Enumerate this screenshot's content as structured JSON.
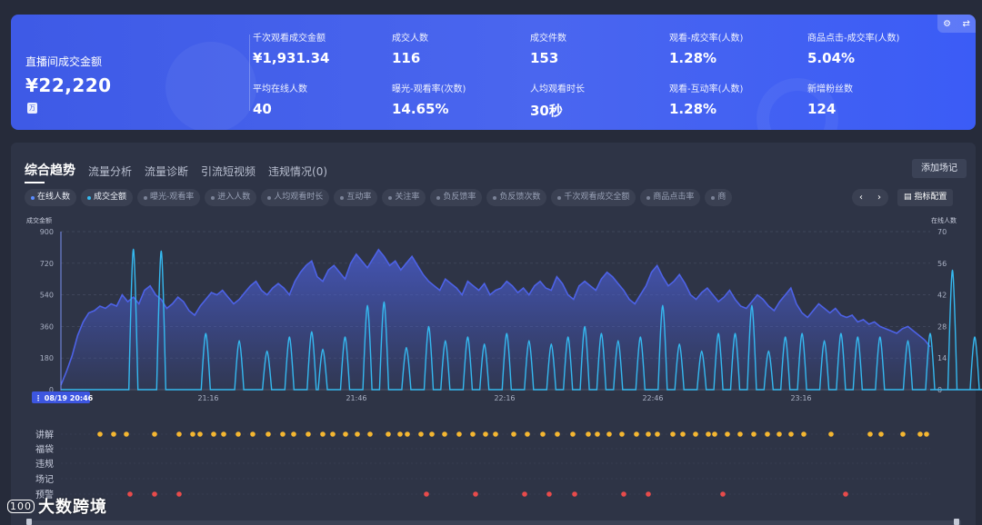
{
  "kpis": {
    "main": {
      "label": "直播间成交金额",
      "value": "¥22,220",
      "unit": "万"
    },
    "items": [
      {
        "label": "千次观看成交金额",
        "value": "¥1,931.34"
      },
      {
        "label": "成交人数",
        "value": "116"
      },
      {
        "label": "成交件数",
        "value": "153"
      },
      {
        "label": "观看-成交率(人数)",
        "value": "1.28%"
      },
      {
        "label": "商品点击-成交率(人数)",
        "value": "5.04%"
      },
      {
        "label": "平均在线人数",
        "value": "40"
      },
      {
        "label": "曝光-观看率(次数)",
        "value": "14.65%"
      },
      {
        "label": "人均观看时长",
        "value": "30秒"
      },
      {
        "label": "观看-互动率(人数)",
        "value": "1.28%"
      },
      {
        "label": "新增粉丝数",
        "value": "124"
      }
    ],
    "tool_icons": [
      "gear-icon",
      "swap-icon"
    ]
  },
  "tabs": [
    "综合趋势",
    "流量分析",
    "流量诊断",
    "引流短视频",
    "违规情况(0)"
  ],
  "add_button": "添加场记",
  "metrics": [
    "在线人数",
    "成交全额",
    "曝光-观看率",
    "进入人数",
    "人均观看时长",
    "互动率",
    "关注率",
    "负反馈率",
    "负反馈次数",
    "千次观看成交全额",
    "商品点击率",
    "商"
  ],
  "metrics_on": [
    0,
    1
  ],
  "pager": {
    "prev": "‹",
    "next": "›"
  },
  "config_button": "指标配置",
  "colors": {
    "accent": "#4a66ef",
    "online": "#4d62e6",
    "sales": "#35b9f0",
    "event_yellow": "#f5b731",
    "event_red": "#e84b4b"
  },
  "chart_data": {
    "type": "line",
    "left_axis": {
      "label": "成交金额",
      "ticks": [
        0,
        180,
        360,
        540,
        720,
        900
      ],
      "ylim": [
        0,
        900
      ]
    },
    "right_axis": {
      "label": "在线人数",
      "ticks": [
        0,
        14,
        28,
        42,
        56,
        70
      ],
      "ylim": [
        0,
        70
      ]
    },
    "x_ticks": [
      "21:16",
      "21:46",
      "22:16",
      "22:46",
      "23:16"
    ],
    "cursor_label": "08/19 20:46",
    "series": [
      {
        "name": "在线人数",
        "axis": "right",
        "area": true,
        "values": [
          2,
          8,
          15,
          24,
          30,
          34,
          35,
          37,
          36,
          38,
          37,
          42,
          39,
          41,
          38,
          44,
          46,
          42,
          40,
          36,
          38,
          41,
          39,
          35,
          33,
          37,
          40,
          43,
          42,
          44,
          41,
          38,
          40,
          43,
          46,
          48,
          44,
          42,
          45,
          47,
          45,
          42,
          48,
          52,
          55,
          57,
          50,
          48,
          53,
          55,
          52,
          49,
          56,
          60,
          57,
          54,
          58,
          62,
          59,
          55,
          57,
          53,
          56,
          59,
          55,
          51,
          48,
          46,
          44,
          49,
          47,
          45,
          42,
          48,
          46,
          44,
          47,
          42,
          44,
          45,
          48,
          46,
          43,
          45,
          42,
          46,
          48,
          45,
          44,
          50,
          47,
          42,
          40,
          46,
          48,
          46,
          44,
          49,
          52,
          50,
          47,
          44,
          40,
          38,
          42,
          46,
          52,
          55,
          50,
          46,
          48,
          51,
          47,
          42,
          40,
          43,
          45,
          42,
          39,
          41,
          44,
          40,
          37,
          36,
          39,
          42,
          40,
          37,
          35,
          39,
          42,
          45,
          38,
          34,
          32,
          35,
          38,
          36,
          34,
          36,
          33,
          32,
          33,
          30,
          31,
          29,
          30,
          28,
          27,
          26,
          25,
          27,
          28,
          26,
          24,
          22,
          19
        ]
      },
      {
        "name": "成交全额",
        "axis": "left",
        "area": false,
        "values": [
          0,
          0,
          0,
          0,
          0,
          0,
          0,
          0,
          0,
          0,
          0,
          0,
          0,
          0,
          160,
          0,
          0,
          0,
          0,
          0,
          0,
          0,
          0,
          0,
          0,
          0,
          0,
          0,
          0,
          0,
          0,
          0,
          0,
          0,
          0,
          0,
          0,
          0,
          0,
          0,
          0,
          0,
          0,
          0,
          0,
          0,
          0,
          0,
          0,
          0,
          0,
          0,
          0,
          0,
          0,
          0,
          0,
          0,
          0,
          0,
          0,
          0,
          0,
          0,
          0,
          0,
          0,
          0,
          0,
          0,
          0,
          0,
          0,
          0,
          0,
          0,
          0,
          0,
          0,
          0,
          0,
          0,
          0,
          0,
          0,
          0,
          0,
          0,
          0,
          0,
          0,
          0,
          0,
          0,
          0,
          0,
          0,
          0,
          0,
          0,
          0,
          0,
          0,
          0,
          0,
          0,
          0,
          0,
          0,
          0,
          0,
          0,
          0,
          0,
          0,
          0,
          0,
          0,
          0,
          0,
          0,
          0,
          0,
          0,
          0,
          0,
          0,
          0,
          0,
          0,
          0,
          0,
          0,
          0,
          0,
          0,
          0,
          0,
          0,
          0,
          0,
          0,
          0,
          0,
          0,
          0,
          0,
          0,
          0,
          0,
          0,
          0,
          0,
          0,
          0,
          0
        ]
      },
      {
        "name": "成交全额-峰值",
        "axis": "left",
        "area": false,
        "peaks": [
          [
            13,
            800
          ],
          [
            18,
            790
          ],
          [
            26,
            320
          ],
          [
            32,
            280
          ],
          [
            37,
            220
          ],
          [
            41,
            300
          ],
          [
            45,
            330
          ],
          [
            47,
            230
          ],
          [
            51,
            300
          ],
          [
            55,
            480
          ],
          [
            58,
            500
          ],
          [
            62,
            240
          ],
          [
            66,
            360
          ],
          [
            69,
            280
          ],
          [
            73,
            300
          ],
          [
            76,
            260
          ],
          [
            80,
            320
          ],
          [
            84,
            280
          ],
          [
            88,
            260
          ],
          [
            91,
            300
          ],
          [
            94,
            360
          ],
          [
            97,
            320
          ],
          [
            100,
            280
          ],
          [
            104,
            300
          ],
          [
            108,
            480
          ],
          [
            111,
            260
          ],
          [
            115,
            220
          ],
          [
            118,
            320
          ],
          [
            121,
            320
          ],
          [
            124,
            480
          ],
          [
            127,
            220
          ],
          [
            130,
            300
          ],
          [
            133,
            320
          ],
          [
            137,
            280
          ],
          [
            140,
            320
          ],
          [
            143,
            300
          ],
          [
            147,
            300
          ],
          [
            152,
            280
          ],
          [
            156,
            320
          ],
          [
            160,
            680
          ],
          [
            164,
            300
          ],
          [
            167,
            240
          ],
          [
            171,
            280
          ],
          [
            175,
            220
          ],
          [
            179,
            320
          ],
          [
            183,
            260
          ],
          [
            187,
            420
          ]
        ]
      }
    ],
    "events": {
      "rows": [
        "讲解",
        "福袋",
        "违规",
        "场记",
        "预警"
      ],
      "讲解": [
        110,
        125,
        139,
        170,
        197,
        212,
        220,
        235,
        246,
        262,
        278,
        295,
        311,
        323,
        339,
        355,
        366,
        380,
        393,
        407,
        427,
        440,
        448,
        463,
        475,
        489,
        505,
        520,
        534,
        545,
        565,
        580,
        597,
        613,
        630,
        647,
        657,
        670,
        684,
        700,
        713,
        723,
        740,
        751,
        765,
        779,
        786,
        800,
        814,
        829,
        844,
        857,
        870,
        884,
        914,
        957,
        969,
        993,
        1012,
        1019
      ],
      "预警": [
        143,
        170,
        197,
        469,
        523,
        577,
        604,
        632,
        686,
        713,
        795,
        930
      ]
    }
  }
}
